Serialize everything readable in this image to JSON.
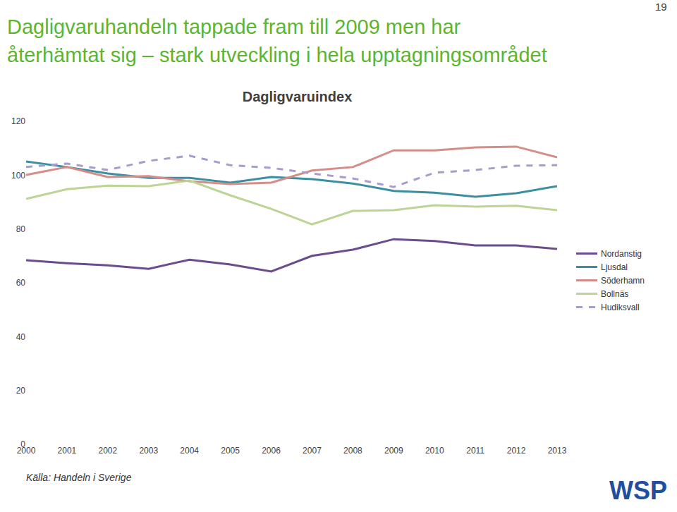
{
  "chart_data": {
    "type": "line",
    "title": "Dagligvaruindex",
    "annotations": [
      "Dagligvaruhandeln tappade fram till 2009 men har",
      "återhämtat sig – stark utveckling i hela upptagningsområdet",
      "19",
      "Källa: Handeln i Sverige",
      "WSP"
    ],
    "categories": [
      "2000",
      "2001",
      "2002",
      "2003",
      "2004",
      "2005",
      "2006",
      "2007",
      "2008",
      "2009",
      "2010",
      "2011",
      "2012",
      "2013"
    ],
    "series": [
      {
        "name": "Nordanstig",
        "color": "#6b4c8f",
        "line_style": "solid",
        "values": [
          68.4,
          67.3,
          66.5,
          65.2,
          68.6,
          66.8,
          64.2,
          70.0,
          72.3,
          76.2,
          75.5,
          73.9,
          73.9,
          72.6
        ]
      },
      {
        "name": "Ljusdal",
        "color": "#3b8fa1",
        "line_style": "solid",
        "values": [
          105.1,
          103.0,
          100.6,
          99.0,
          99.0,
          97.2,
          99.3,
          98.5,
          96.9,
          94.1,
          93.5,
          92.0,
          93.3,
          95.9
        ]
      },
      {
        "name": "Söderhamn",
        "color": "#d48d89",
        "line_style": "solid",
        "values": [
          100.1,
          103.0,
          99.3,
          99.6,
          97.7,
          96.7,
          97.2,
          101.7,
          103.0,
          109.2,
          109.2,
          110.3,
          110.6,
          106.6
        ]
      },
      {
        "name": "Bollnäs",
        "color": "#bcd494",
        "line_style": "solid",
        "values": [
          91.2,
          94.8,
          96.1,
          95.9,
          98.0,
          92.5,
          87.5,
          81.7,
          86.7,
          87.0,
          88.8,
          88.3,
          88.6,
          87.0
        ]
      },
      {
        "name": "Hudiksvall",
        "color": "#a99cca",
        "line_style": "dashed",
        "values": [
          103.0,
          104.3,
          101.9,
          105.3,
          107.2,
          103.7,
          102.7,
          100.6,
          98.8,
          95.6,
          100.9,
          101.9,
          103.5,
          103.7
        ]
      }
    ],
    "ylim": [
      0,
      120
    ],
    "yticks": [
      0,
      20,
      40,
      60,
      80,
      100,
      120
    ],
    "grid": false,
    "legend": "right"
  }
}
